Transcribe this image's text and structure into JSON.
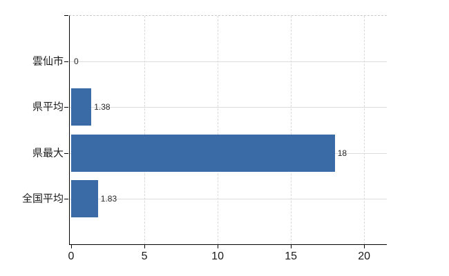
{
  "chart_data": {
    "type": "bar",
    "orientation": "horizontal",
    "categories": [
      "雲仙市",
      "県平均",
      "県最大",
      "全国平均"
    ],
    "values": [
      0,
      1.38,
      18,
      1.83
    ],
    "value_labels": [
      "0",
      "1.38",
      "18",
      "1.83"
    ],
    "x_ticks": [
      0,
      5,
      10,
      15,
      20
    ],
    "x_tick_labels": [
      "0",
      "5",
      "10",
      "15",
      "20"
    ],
    "xlim": [
      0,
      21.55
    ],
    "grid": "on",
    "legend": "none",
    "colors": {
      "bar": "#3b6ba7",
      "axis": "#000000",
      "grid_horizontal": "#dcdcdc",
      "grid_vertical": "#d9d9d9",
      "plot_top_border": "#c8c8c8",
      "category_label": "#1a1a1a",
      "tick_label": "#1a1a1a",
      "value_label": "#262626"
    }
  }
}
